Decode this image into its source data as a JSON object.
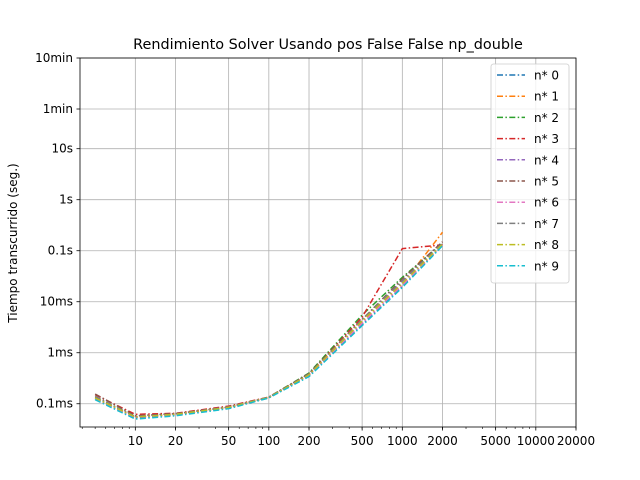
{
  "chart_data": {
    "type": "line",
    "title": "Rendimiento  Solver Usando pos False False np_double",
    "xlabel": "",
    "ylabel": "Tiempo transcurrido (seg.)",
    "xscale": "log",
    "yscale": "log",
    "xlim": [
      3.85,
      20000
    ],
    "ylim": [
      3.5e-05,
      600
    ],
    "grid": true,
    "legend_position": "top-right",
    "x_ticks": [
      {
        "value": 10,
        "label": "10"
      },
      {
        "value": 20,
        "label": "20"
      },
      {
        "value": 50,
        "label": "50"
      },
      {
        "value": 100,
        "label": "100"
      },
      {
        "value": 200,
        "label": "200"
      },
      {
        "value": 500,
        "label": "500"
      },
      {
        "value": 1000,
        "label": "1000"
      },
      {
        "value": 2000,
        "label": "2000"
      },
      {
        "value": 5000,
        "label": "5000"
      },
      {
        "value": 10000,
        "label": "10000"
      },
      {
        "value": 20000,
        "label": "20000"
      }
    ],
    "y_ticks": [
      {
        "value": 0.0001,
        "label": "0.1ms"
      },
      {
        "value": 0.001,
        "label": "1ms"
      },
      {
        "value": 0.01,
        "label": "10ms"
      },
      {
        "value": 0.1,
        "label": "0.1s"
      },
      {
        "value": 1,
        "label": "1s"
      },
      {
        "value": 10,
        "label": "10s"
      },
      {
        "value": 60,
        "label": "1min"
      },
      {
        "value": 600,
        "label": "10min"
      }
    ],
    "x": [
      5,
      10,
      20,
      50,
      100,
      200,
      500,
      1000,
      2000
    ],
    "series": [
      {
        "name": "n* 0",
        "color": "#1f77b4",
        "values": [
          0.000125,
          5.2e-05,
          6e-05,
          8.2e-05,
          0.00013,
          0.00036,
          0.0036,
          0.02,
          0.13
        ]
      },
      {
        "name": "n* 1",
        "color": "#ff7f0e",
        "values": [
          0.00013,
          5.5e-05,
          6.2e-05,
          8.5e-05,
          0.000133,
          0.00037,
          0.004,
          0.022,
          0.23
        ]
      },
      {
        "name": "n* 2",
        "color": "#2ca02c",
        "values": [
          0.000135,
          5.6e-05,
          6.3e-05,
          8.6e-05,
          0.000135,
          0.0004,
          0.0055,
          0.03,
          0.14
        ]
      },
      {
        "name": "n* 3",
        "color": "#d62728",
        "values": [
          0.00015,
          6.2e-05,
          6.5e-05,
          9e-05,
          0.000135,
          0.00038,
          0.005,
          0.11,
          0.13
        ]
      },
      {
        "name": "n* 4",
        "color": "#9467bd",
        "values": [
          0.00013,
          5.5e-05,
          6.2e-05,
          8.5e-05,
          0.000133,
          0.00037,
          0.0042,
          0.024,
          0.14
        ]
      },
      {
        "name": "n* 5",
        "color": "#8c564b",
        "values": [
          0.000155,
          5.8e-05,
          6.4e-05,
          8.6e-05,
          0.000134,
          0.00039,
          0.0045,
          0.028,
          0.15
        ]
      },
      {
        "name": "n* 6",
        "color": "#e377c2",
        "values": [
          0.000125,
          5.4e-05,
          6.1e-05,
          8.3e-05,
          0.000131,
          0.00036,
          0.0038,
          0.021,
          0.13
        ]
      },
      {
        "name": "n* 7",
        "color": "#7f7f7f",
        "values": [
          0.00014,
          5.6e-05,
          6.3e-05,
          8.7e-05,
          0.000134,
          0.00038,
          0.0045,
          0.026,
          0.14
        ]
      },
      {
        "name": "n* 8",
        "color": "#bcbd22",
        "values": [
          0.00013,
          5.5e-05,
          6.2e-05,
          8.5e-05,
          0.000132,
          0.00037,
          0.0042,
          0.023,
          0.135
        ]
      },
      {
        "name": "n* 9",
        "color": "#17becf",
        "values": [
          0.00012,
          5e-05,
          5.8e-05,
          8e-05,
          0.00013,
          0.00034,
          0.0034,
          0.019,
          0.125
        ]
      }
    ]
  }
}
